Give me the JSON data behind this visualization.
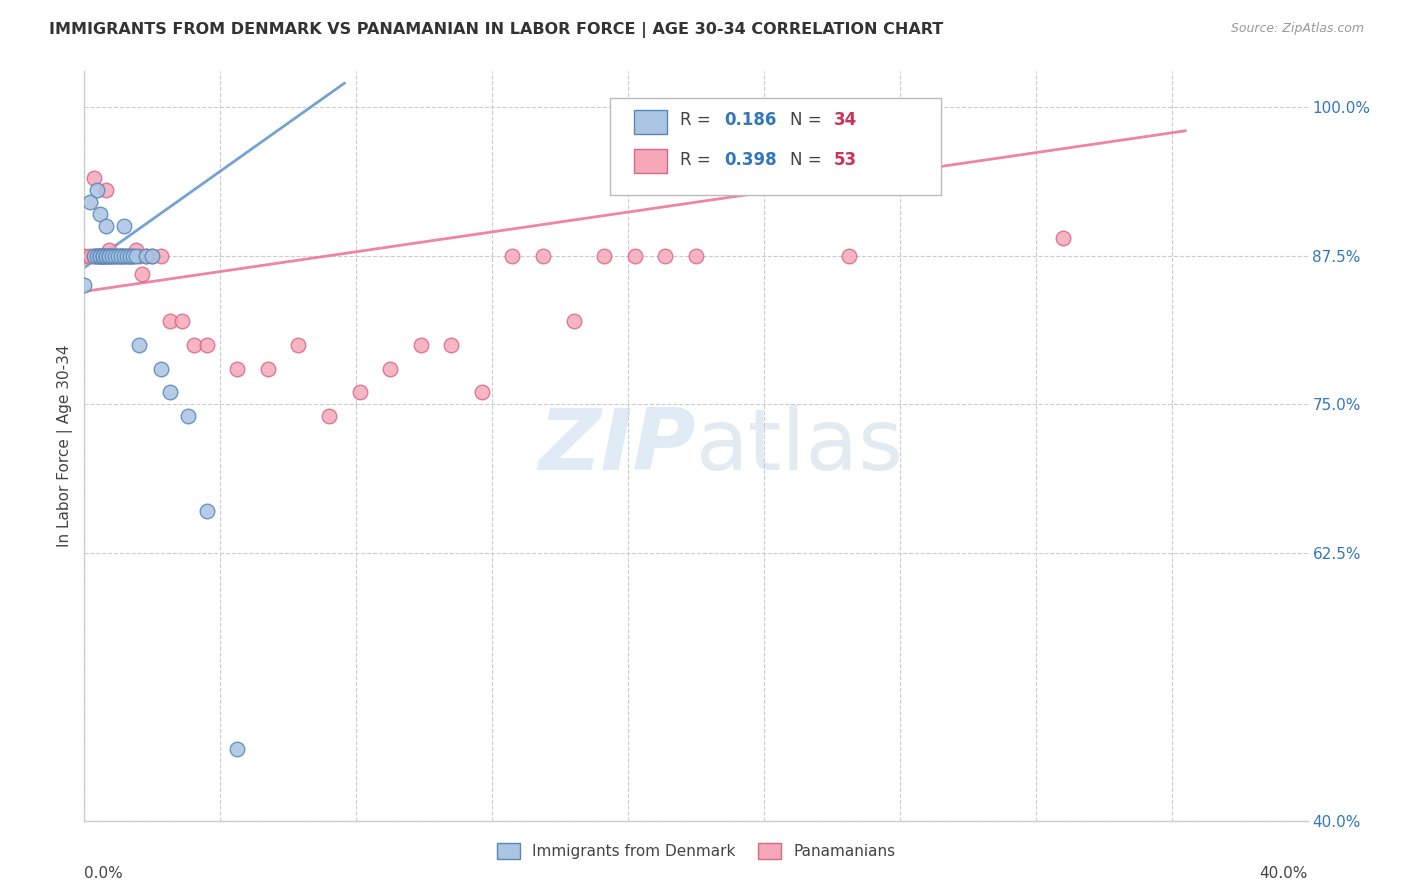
{
  "title": "IMMIGRANTS FROM DENMARK VS PANAMANIAN IN LABOR FORCE | AGE 30-34 CORRELATION CHART",
  "source": "Source: ZipAtlas.com",
  "ylabel": "In Labor Force | Age 30-34",
  "ytick_labels": [
    "100.0%",
    "87.5%",
    "75.0%",
    "62.5%",
    "40.0%"
  ],
  "ytick_values": [
    1.0,
    0.875,
    0.75,
    0.625,
    0.4
  ],
  "xmin": 0.0,
  "xmax": 0.4,
  "ymin": 0.4,
  "ymax": 1.03,
  "watermark_zip": "ZIP",
  "watermark_atlas": "atlas",
  "denmark_color": "#aac4e2",
  "panama_color": "#f4a8b8",
  "denmark_edge": "#5588bb",
  "panama_edge": "#dd6688",
  "trend_blue": "#6699cc",
  "trend_pink": "#ee7799",
  "legend_r1": "0.186",
  "legend_n1": "34",
  "legend_r2": "0.398",
  "legend_n2": "53",
  "denmark_x": [
    0.0,
    0.002,
    0.003,
    0.004,
    0.004,
    0.005,
    0.005,
    0.005,
    0.006,
    0.006,
    0.006,
    0.007,
    0.007,
    0.007,
    0.008,
    0.008,
    0.009,
    0.01,
    0.011,
    0.012,
    0.013,
    0.013,
    0.014,
    0.015,
    0.016,
    0.017,
    0.018,
    0.02,
    0.022,
    0.025,
    0.028,
    0.034,
    0.04,
    0.05
  ],
  "denmark_y": [
    0.85,
    0.92,
    0.875,
    0.93,
    0.875,
    0.875,
    0.875,
    0.91,
    0.875,
    0.875,
    0.875,
    0.875,
    0.875,
    0.9,
    0.875,
    0.875,
    0.875,
    0.875,
    0.875,
    0.875,
    0.875,
    0.9,
    0.875,
    0.875,
    0.875,
    0.875,
    0.8,
    0.875,
    0.875,
    0.78,
    0.76,
    0.74,
    0.66,
    0.46
  ],
  "panama_x": [
    0.0,
    0.002,
    0.003,
    0.003,
    0.004,
    0.004,
    0.005,
    0.005,
    0.006,
    0.006,
    0.007,
    0.007,
    0.008,
    0.008,
    0.009,
    0.009,
    0.01,
    0.011,
    0.012,
    0.012,
    0.013,
    0.014,
    0.015,
    0.015,
    0.016,
    0.017,
    0.018,
    0.019,
    0.02,
    0.022,
    0.025,
    0.028,
    0.032,
    0.036,
    0.04,
    0.05,
    0.06,
    0.07,
    0.08,
    0.09,
    0.1,
    0.11,
    0.12,
    0.13,
    0.14,
    0.15,
    0.16,
    0.17,
    0.18,
    0.19,
    0.2,
    0.25,
    0.32
  ],
  "panama_y": [
    0.875,
    0.875,
    0.94,
    0.875,
    0.875,
    0.875,
    0.875,
    0.875,
    0.875,
    0.875,
    0.875,
    0.93,
    0.88,
    0.875,
    0.875,
    0.875,
    0.875,
    0.875,
    0.875,
    0.875,
    0.875,
    0.875,
    0.875,
    0.875,
    0.875,
    0.88,
    0.875,
    0.86,
    0.875,
    0.875,
    0.875,
    0.82,
    0.82,
    0.8,
    0.8,
    0.78,
    0.78,
    0.8,
    0.74,
    0.76,
    0.78,
    0.8,
    0.8,
    0.76,
    0.875,
    0.875,
    0.82,
    0.875,
    0.875,
    0.875,
    0.875,
    0.875,
    0.89
  ]
}
